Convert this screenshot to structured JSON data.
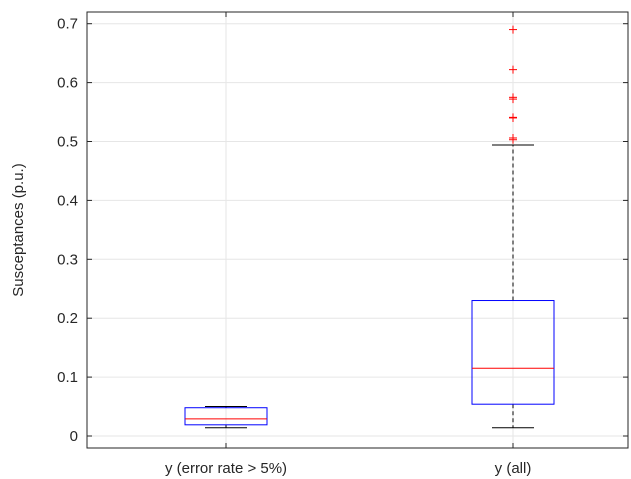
{
  "chart_data": {
    "type": "box",
    "title": "",
    "xlabel": "",
    "ylabel": "Susceptances (p.u.)",
    "ylim": [
      -0.02,
      0.72
    ],
    "yticks": [
      0,
      0.1,
      0.2,
      0.3,
      0.4,
      0.5,
      0.6,
      0.7
    ],
    "ytick_labels": [
      "0",
      "0.1",
      "0.2",
      "0.3",
      "0.4",
      "0.5",
      "0.6",
      "0.7"
    ],
    "grid": true,
    "categories": [
      "y (error rate > 5%)",
      "y (all)"
    ],
    "boxes": [
      {
        "label": "y (error rate > 5%)",
        "whisker_low": 0.014,
        "q1": 0.019,
        "median": 0.029,
        "q3": 0.048,
        "whisker_high": 0.05,
        "outliers": []
      },
      {
        "label": "y (all)",
        "whisker_low": 0.014,
        "q1": 0.054,
        "median": 0.115,
        "q3": 0.23,
        "whisker_high": 0.494,
        "outliers": [
          0.503,
          0.506,
          0.54,
          0.541,
          0.572,
          0.575,
          0.622,
          0.69
        ]
      }
    ],
    "colors": {
      "box": "#0000ff",
      "median": "#ff0000",
      "outlier": "#ff0000",
      "whisker": "#000000",
      "grid": "#e6e6e6",
      "axis": "#262626"
    }
  }
}
